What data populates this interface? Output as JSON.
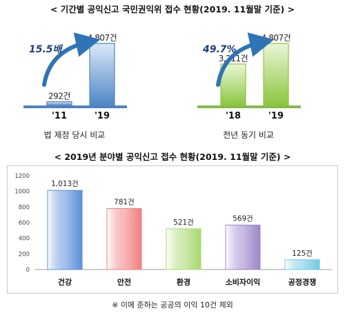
{
  "heading1": "< 기간별 공익신고 국민권익위 접수 현황(2019. 11월말 기준) >",
  "heading2": "< 2019년 분야별 공익신고 접수 현황(2019. 11월말 기준) >",
  "footnote": "※ 이에 준하는 공공의 이익 10건 제외",
  "colors": {
    "left_bar_fill": "#4f86c6",
    "left_bar_light": "#dbe8f7",
    "left_base": "#2e6db5",
    "right_bar_fill": "#8cc63f",
    "right_bar_light": "#eaf6d6",
    "right_base": "#6eae2a",
    "arrow": "#2f74b5"
  },
  "chart_data": [
    {
      "type": "bar",
      "categories": [
        "'11",
        "'19"
      ],
      "values": [
        292,
        4807
      ],
      "data_labels": [
        "292건",
        "4,807건"
      ],
      "growth_label": "15.5배",
      "caption": "법 제정 당시 비교"
    },
    {
      "type": "bar",
      "categories": [
        "'18",
        "'19"
      ],
      "values": [
        3211,
        4807
      ],
      "data_labels": [
        "3,211건",
        "4,807건"
      ],
      "growth_label": "49.7%",
      "caption": "전년 동기 비교"
    },
    {
      "type": "bar",
      "categories": [
        "건강",
        "안전",
        "환경",
        "소비자이익",
        "공정경쟁"
      ],
      "values": [
        1013,
        781,
        521,
        569,
        125
      ],
      "data_labels": [
        "1,013건",
        "781건",
        "521건",
        "569건",
        "125건"
      ],
      "ylim": [
        0,
        1200
      ],
      "yticks": [
        0,
        200,
        400,
        600,
        800,
        1000,
        1200
      ],
      "grid": false,
      "bar_colors": [
        "#5b8fd8",
        "#f07f7f",
        "#a9d86e",
        "#9b86c9",
        "#6ec9e6"
      ]
    }
  ]
}
